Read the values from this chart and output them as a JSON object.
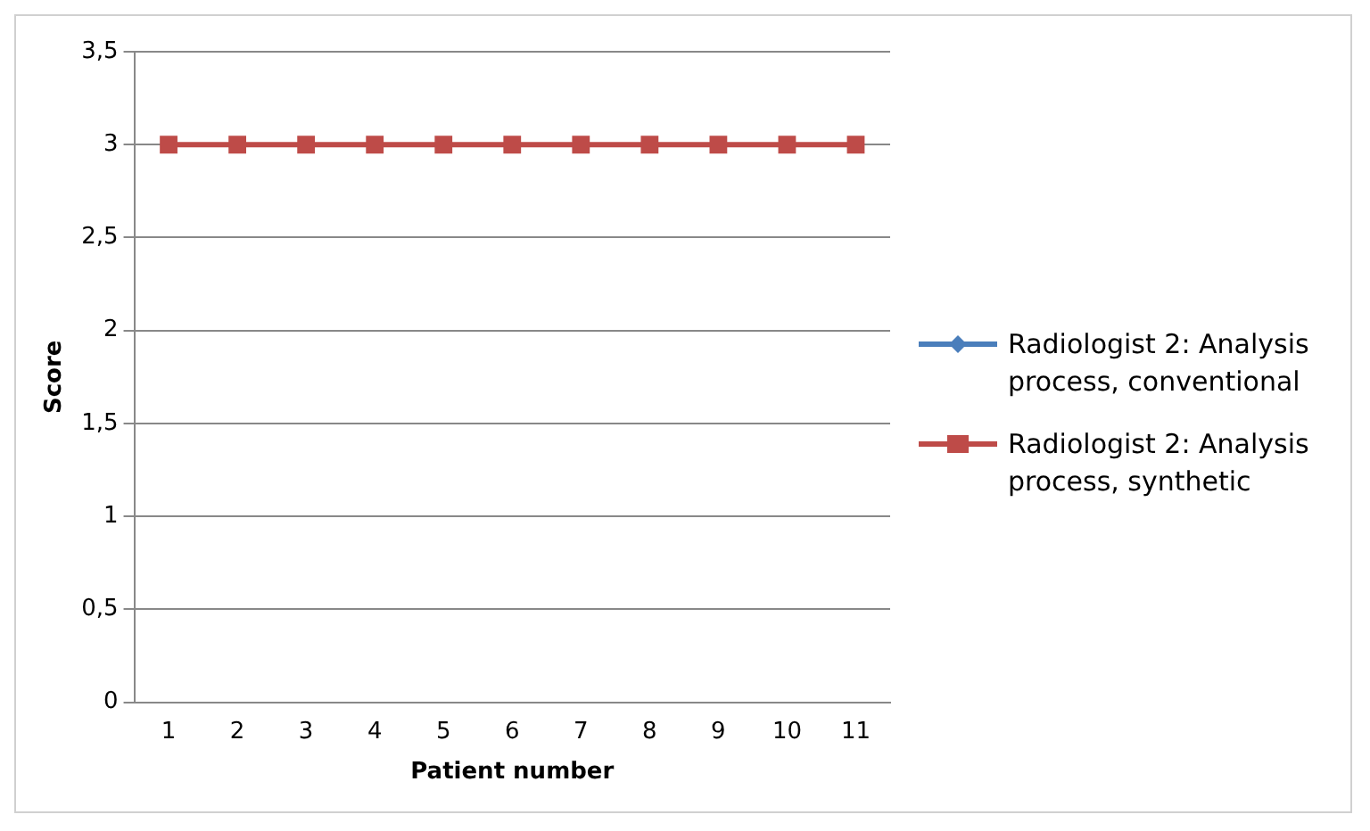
{
  "chart_data": {
    "type": "line",
    "xlabel": "Patient number",
    "ylabel": "Score",
    "categories": [
      "1",
      "2",
      "3",
      "4",
      "5",
      "6",
      "7",
      "8",
      "9",
      "10",
      "11"
    ],
    "series": [
      {
        "name": "Radiologist 2: Analysis process, conventional",
        "color": "#4a7ebb",
        "marker": "diamond",
        "values": [
          null,
          null,
          null,
          null,
          null,
          null,
          null,
          null,
          null,
          null,
          null
        ]
      },
      {
        "name": "Radiologist 2: Analysis process, synthetic",
        "color": "#be4b48",
        "marker": "square",
        "values": [
          3,
          3,
          3,
          3,
          3,
          3,
          3,
          3,
          3,
          3,
          3
        ]
      }
    ],
    "ylim": [
      0,
      3.5
    ],
    "yticks": [
      0,
      {
        "value": 0.5,
        "label": "0,5"
      },
      1,
      {
        "value": 1.5,
        "label": "1,5"
      },
      2,
      {
        "value": 2.5,
        "label": "2,5"
      },
      3,
      {
        "value": 3.5,
        "label": "3,5"
      }
    ],
    "grid": "y",
    "legend": "right",
    "line_style": "solid"
  }
}
